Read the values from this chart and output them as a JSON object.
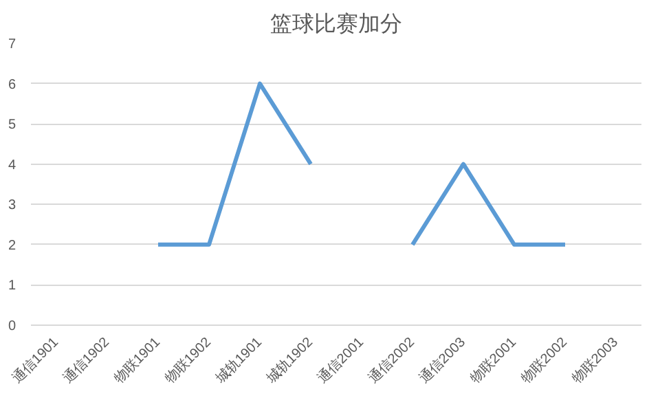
{
  "chart_data": {
    "type": "line",
    "title": "篮球比赛加分",
    "categories": [
      "通信1901",
      "通信1902",
      "物联1901",
      "物联1902",
      "城轨1901",
      "城轨1902",
      "通信2001",
      "通信2002",
      "通信2003",
      "物联2001",
      "物联2002",
      "物联2003"
    ],
    "series": [
      {
        "color": "#5b9bd5",
        "values": [
          null,
          null,
          2,
          2,
          6,
          4,
          null,
          2,
          4,
          2,
          2,
          null
        ]
      }
    ],
    "ylim": [
      0,
      7
    ],
    "yticks": [
      0,
      1,
      2,
      3,
      4,
      5,
      6,
      7
    ],
    "grid": "y",
    "marker": "none",
    "line_style": "solid"
  }
}
